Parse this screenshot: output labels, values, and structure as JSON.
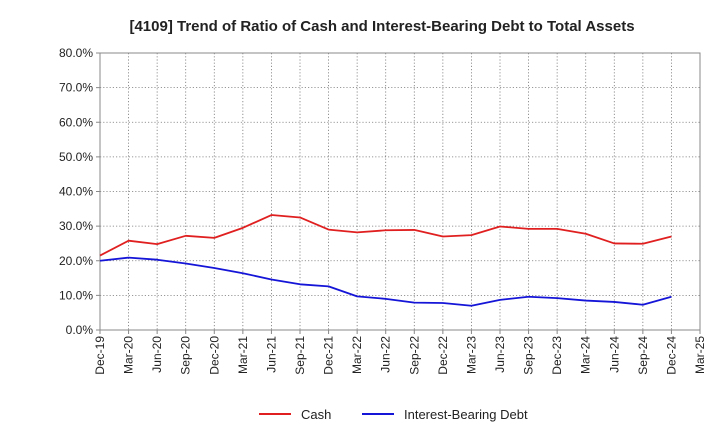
{
  "chart_data": {
    "type": "line",
    "title": "[4109]  Trend of Ratio of Cash and Interest-Bearing Debt to Total Assets",
    "xlabel": "",
    "ylabel": "",
    "x": [
      "Dec-19",
      "Mar-20",
      "Jun-20",
      "Sep-20",
      "Dec-20",
      "Mar-21",
      "Jun-21",
      "Sep-21",
      "Dec-21",
      "Mar-22",
      "Jun-22",
      "Sep-22",
      "Dec-22",
      "Mar-23",
      "Jun-23",
      "Sep-23",
      "Dec-23",
      "Mar-24",
      "Jun-24",
      "Sep-24",
      "Dec-24",
      "Mar-25"
    ],
    "ylim": [
      0,
      80
    ],
    "yticks": [
      0,
      10,
      20,
      30,
      40,
      50,
      60,
      70,
      80
    ],
    "ytick_labels": [
      "0.0%",
      "10.0%",
      "20.0%",
      "30.0%",
      "40.0%",
      "50.0%",
      "60.0%",
      "70.0%",
      "80.0%"
    ],
    "grid": true,
    "legend_position": "bottom",
    "series": [
      {
        "name": "Cash",
        "color": "#e02020",
        "values": [
          21.5,
          25.8,
          24.8,
          27.2,
          26.6,
          29.5,
          33.2,
          32.5,
          29.0,
          28.2,
          28.8,
          28.9,
          27.0,
          27.4,
          29.9,
          29.2,
          29.2,
          27.8,
          25.0,
          24.9,
          27.0,
          null
        ]
      },
      {
        "name": "Interest-Bearing Debt",
        "color": "#1515d8",
        "values": [
          20.0,
          20.9,
          20.3,
          19.2,
          17.9,
          16.4,
          14.6,
          13.2,
          12.6,
          9.7,
          9.0,
          7.9,
          7.8,
          7.0,
          8.7,
          9.6,
          9.2,
          8.5,
          8.1,
          7.3,
          9.6,
          null
        ]
      }
    ]
  }
}
